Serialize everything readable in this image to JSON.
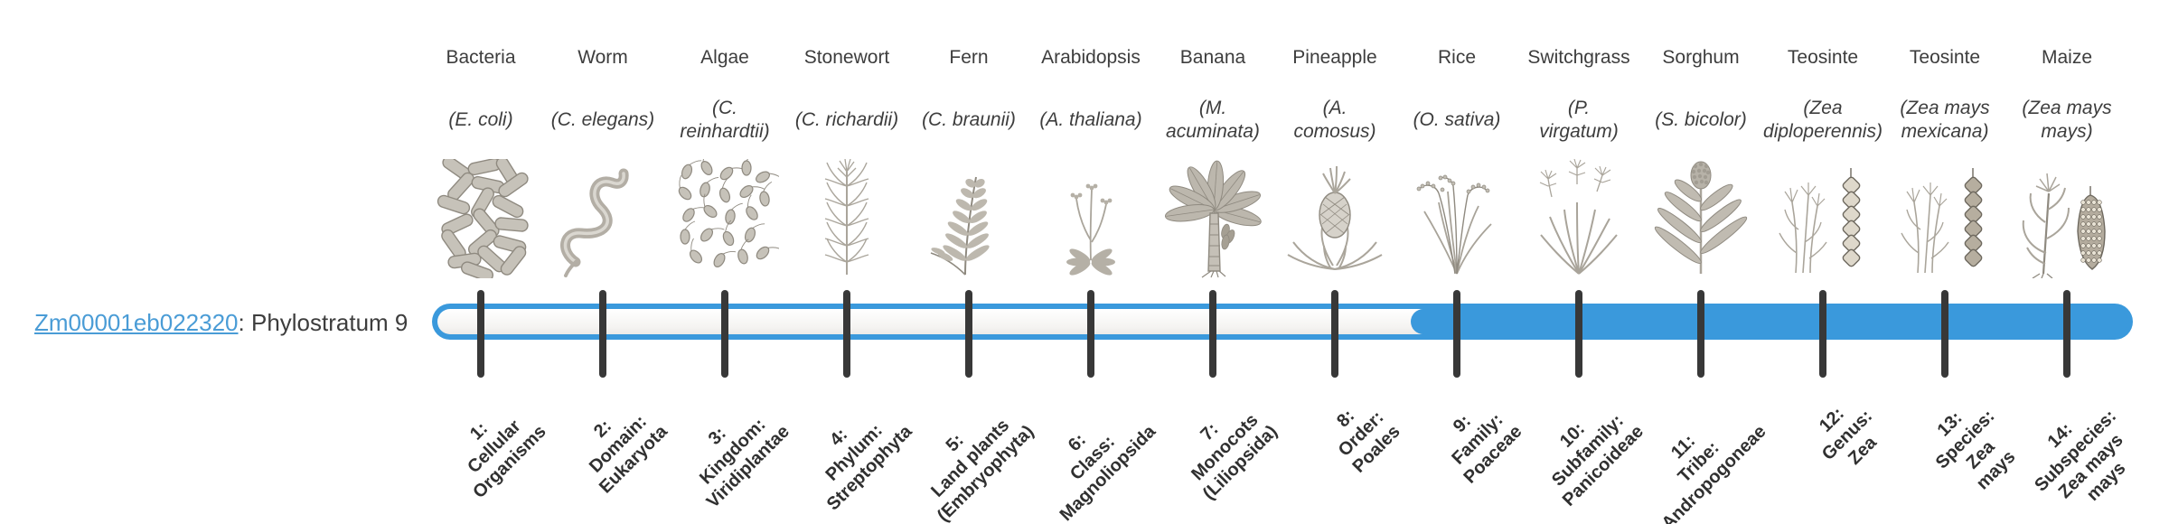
{
  "gene": {
    "id": "Zm00001eb022320",
    "suffix": ": Phylostratum 9",
    "phylostratum": 9
  },
  "timeline": {
    "total_strata": 14,
    "filled_from_stratum": 9
  },
  "colors": {
    "bar_blue": "#3A99DC",
    "bar_track_fill": "#f4f3f1",
    "tick": "#383838",
    "text": "#3D3D3D",
    "link": "#4A9CD6",
    "rank_label": "#303030",
    "illustration_gray": "#9b968c"
  },
  "strata": [
    {
      "num": 1,
      "organism": "Bacteria",
      "species": "(E. coli)",
      "icon": "bacteria-icon",
      "rank_label": "1:\nCellular\nOrganisms",
      "filled": false
    },
    {
      "num": 2,
      "organism": "Worm",
      "species": "(C. elegans)",
      "icon": "worm-icon",
      "rank_label": "2:\nDomain:\nEukaryota",
      "filled": false
    },
    {
      "num": 3,
      "organism": "Algae",
      "species": "(C.\nreinhardtii)",
      "icon": "algae-icon",
      "rank_label": "3:\nKingdom:\nViridiplantae",
      "filled": false
    },
    {
      "num": 4,
      "organism": "Stonewort",
      "species": "(C. richardii)",
      "icon": "stonewort-icon",
      "rank_label": "4:\nPhylum:\nStreptophyta",
      "filled": false
    },
    {
      "num": 5,
      "organism": "Fern",
      "species": "(C. braunii)",
      "icon": "fern-icon",
      "rank_label": "5:\nLand plants\n(Embryophyta)",
      "filled": false
    },
    {
      "num": 6,
      "organism": "Arabidopsis",
      "species": "(A. thaliana)",
      "icon": "arabidopsis-icon",
      "rank_label": "6:\nClass:\nMagnoliopsida",
      "filled": false
    },
    {
      "num": 7,
      "organism": "Banana",
      "species": "(M.\nacuminata)",
      "icon": "banana-icon",
      "rank_label": "7:\nMonocots\n(Liliopsida)",
      "filled": false
    },
    {
      "num": 8,
      "organism": "Pineapple",
      "species": "(A.\ncomosus)",
      "icon": "pineapple-icon",
      "rank_label": "8:\nOrder:\nPoales",
      "filled": false
    },
    {
      "num": 9,
      "organism": "Rice",
      "species": "(O. sativa)",
      "icon": "rice-icon",
      "rank_label": "9:\nFamily:\nPoaceae",
      "filled": true
    },
    {
      "num": 10,
      "organism": "Switchgrass",
      "species": "(P.\nvirgatum)",
      "icon": "switchgrass-icon",
      "rank_label": "10:\nSubfamily:\nPanicoideae",
      "filled": true
    },
    {
      "num": 11,
      "organism": "Sorghum",
      "species": "(S. bicolor)",
      "icon": "sorghum-icon",
      "rank_label": "11:\nTribe:\nAndropogoneae",
      "filled": true
    },
    {
      "num": 12,
      "organism": "Teosinte",
      "species": "(Zea\ndiploperennis)",
      "icon": "teosinte-icon",
      "rank_label": "12:\nGenus:\nZea",
      "filled": true
    },
    {
      "num": 13,
      "organism": "Teosinte",
      "species": "(Zea mays\nmexicana)",
      "icon": "teosinte-dark-icon",
      "rank_label": "13:\nSpecies:\nZea\nmays",
      "filled": true
    },
    {
      "num": 14,
      "organism": "Maize",
      "species": "(Zea mays\nmays)",
      "icon": "maize-icon",
      "rank_label": "14:\nSubspecies:\nZea mays\nmays",
      "filled": true
    }
  ]
}
